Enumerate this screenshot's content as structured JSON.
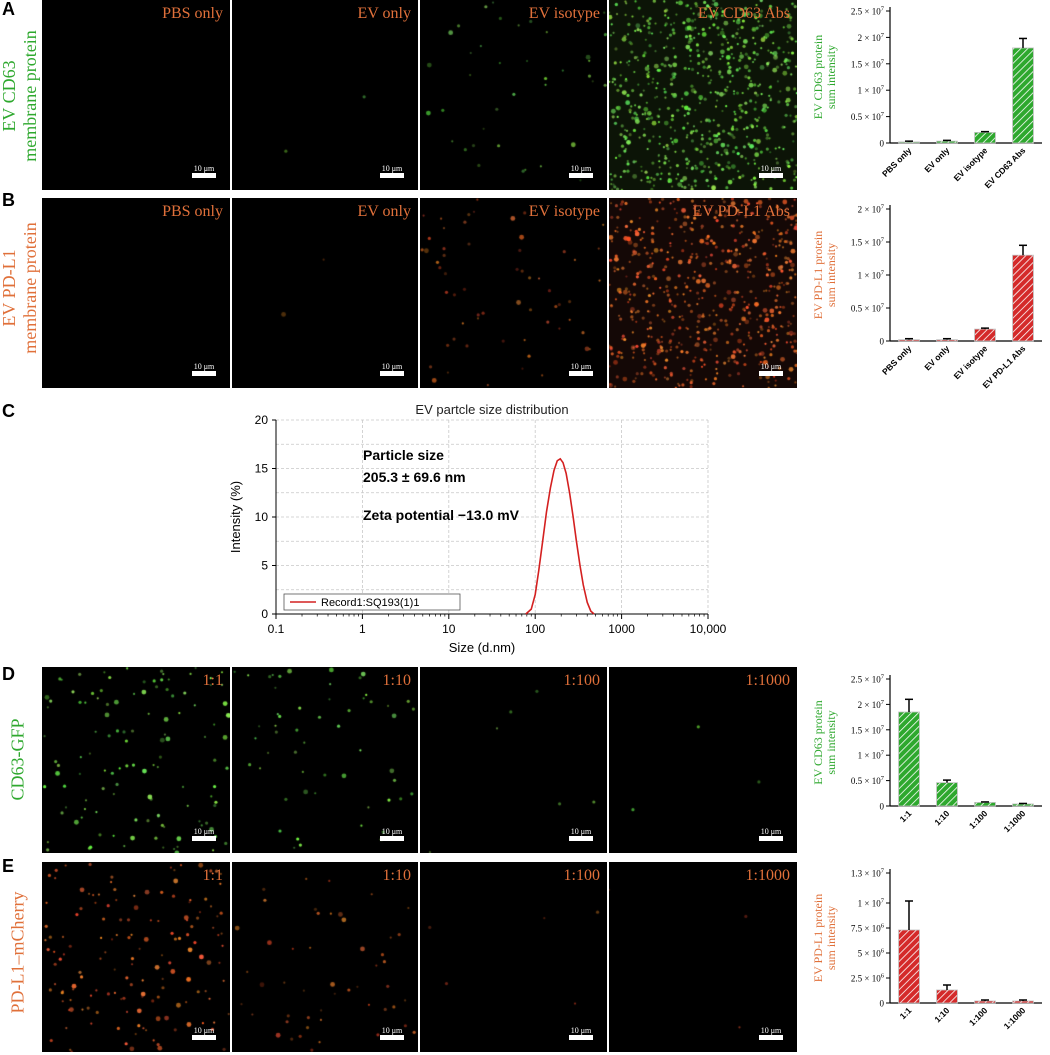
{
  "colors": {
    "green": "#2ea82e",
    "orange": "#e0703a",
    "label_orange": "#e0703a",
    "red": "#d42a2a",
    "lineRed": "#d42020"
  },
  "panels": {
    "A": {
      "letter": "A",
      "row_label": [
        "EV CD63",
        "membrane protein"
      ],
      "images": [
        "PBS only",
        "EV only",
        "EV isotype",
        "EV CD63 Abs"
      ],
      "scale_label": "10 μm"
    },
    "B": {
      "letter": "B",
      "row_label": [
        "EV PD-L1",
        "membrane protein"
      ],
      "images": [
        "PBS only",
        "EV only",
        "EV isotype",
        "EV PD-L1 Abs"
      ],
      "scale_label": "10 μm"
    },
    "C": {
      "letter": "C"
    },
    "D": {
      "letter": "D",
      "row_label": [
        "CD63-GFP"
      ],
      "images": [
        "1:1",
        "1:10",
        "1:100",
        "1:1000"
      ],
      "scale_label": "10 μm"
    },
    "E": {
      "letter": "E",
      "row_label": [
        "PD-L1–mCherry"
      ],
      "images": [
        "1:1",
        "1:10",
        "1:100",
        "1:1000"
      ],
      "scale_label": "10 μm"
    }
  },
  "chart_data": [
    {
      "id": "A",
      "type": "bar",
      "categories": [
        "PBS only",
        "EV only",
        "EV isotype",
        "EV CD63 Abs"
      ],
      "values": [
        200000,
        350000,
        2000000,
        18000000
      ],
      "errors": [
        150000,
        150000,
        150000,
        1800000
      ],
      "ylabel": [
        "EV CD63 protein",
        "sum intensity"
      ],
      "ylim": [
        0,
        25000000
      ],
      "yticks": [
        0,
        5000000,
        10000000,
        15000000,
        20000000,
        25000000
      ],
      "ytick_labels": [
        "0",
        "0.5 × 10",
        "1 × 10",
        "1.5 × 10",
        "2 × 10",
        "2.5 × 10"
      ],
      "ytick_exps": [
        "",
        "7",
        "7",
        "7",
        "7",
        "7"
      ],
      "color": "#2ea82e",
      "label_color": "#2ea82e"
    },
    {
      "id": "B",
      "type": "bar",
      "categories": [
        "PBS only",
        "EV only",
        "EV isotype",
        "EV PD-L1 Abs"
      ],
      "values": [
        200000,
        200000,
        1800000,
        13000000
      ],
      "errors": [
        150000,
        150000,
        150000,
        1500000
      ],
      "ylabel": [
        "EV PD-L1 protein",
        "sum intensity"
      ],
      "ylim": [
        0,
        20000000
      ],
      "yticks": [
        0,
        5000000,
        10000000,
        15000000,
        20000000
      ],
      "ytick_labels": [
        "0",
        "0.5 × 10",
        "1 × 10",
        "1.5 × 10",
        "2 × 10"
      ],
      "ytick_exps": [
        "",
        "7",
        "7",
        "7",
        "7"
      ],
      "color": "#d42a2a",
      "label_color": "#e0703a"
    },
    {
      "id": "C",
      "type": "line",
      "title": "EV partcle size distribution",
      "xlabel": "Size (d.nm)",
      "ylabel": "Intensity (%)",
      "xscale": "log",
      "xlim": [
        0.1,
        10000
      ],
      "ylim": [
        0,
        20
      ],
      "xticks": [
        0.1,
        1,
        10,
        100,
        1000,
        10000
      ],
      "xtick_labels": [
        "0.1",
        "1",
        "10",
        "100",
        "1000",
        "10,000"
      ],
      "yticks": [
        0,
        5,
        10,
        15,
        20
      ],
      "ytick_labels": [
        "0",
        "5",
        "10",
        "15",
        "20"
      ],
      "grid": true,
      "legend_position": "bottom-left",
      "annotations": [
        "Particle size",
        "205.3 ± 69.6 nm",
        "Zeta potential −13.0 mV"
      ],
      "series": [
        {
          "name": "Record1:SQ193(1)1",
          "x": [
            78,
            90,
            100,
            110,
            122,
            135,
            150,
            165,
            180,
            195,
            210,
            228,
            250,
            275,
            300,
            330,
            360,
            400,
            440,
            480
          ],
          "y": [
            0,
            0.5,
            2,
            4.5,
            7.5,
            10.5,
            13,
            14.8,
            15.8,
            16,
            15.6,
            14.5,
            12.5,
            10,
            7.5,
            5,
            3,
            1.2,
            0.3,
            0
          ]
        }
      ]
    },
    {
      "id": "D",
      "type": "bar",
      "categories": [
        "1:1",
        "1:10",
        "1:100",
        "1:1000"
      ],
      "values": [
        18500000,
        4600000,
        700000,
        400000
      ],
      "errors": [
        2500000,
        500000,
        100000,
        100000
      ],
      "ylabel": [
        "EV CD63 protein",
        "sum intensity"
      ],
      "ylim": [
        0,
        25000000
      ],
      "yticks": [
        0,
        5000000,
        10000000,
        15000000,
        20000000,
        25000000
      ],
      "ytick_labels": [
        "0",
        "0.5 × 10",
        "1 × 10",
        "1.5 × 10",
        "2 × 10",
        "2.5 × 10"
      ],
      "ytick_exps": [
        "",
        "7",
        "7",
        "7",
        "7",
        "7"
      ],
      "color": "#2ea82e",
      "label_color": "#2ea82e"
    },
    {
      "id": "E",
      "type": "bar",
      "categories": [
        "1:1",
        "1:10",
        "1:100",
        "1:1000"
      ],
      "values": [
        7300000,
        1300000,
        200000,
        200000
      ],
      "errors": [
        2900000,
        500000,
        100000,
        100000
      ],
      "ylabel": [
        "EV PD-L1 protein",
        "sum intensity"
      ],
      "ylim": [
        0,
        13000000
      ],
      "yticks": [
        0,
        2500000,
        5000000,
        7500000,
        10000000,
        13000000
      ],
      "ytick_labels": [
        "0",
        "2.5 × 10",
        "5 × 10",
        "7.5 × 10",
        "1 × 10",
        "1.3 × 10"
      ],
      "ytick_exps": [
        "",
        "6",
        "6",
        "6",
        "7",
        "7"
      ],
      "color": "#d42a2a",
      "label_color": "#e0703a"
    }
  ]
}
